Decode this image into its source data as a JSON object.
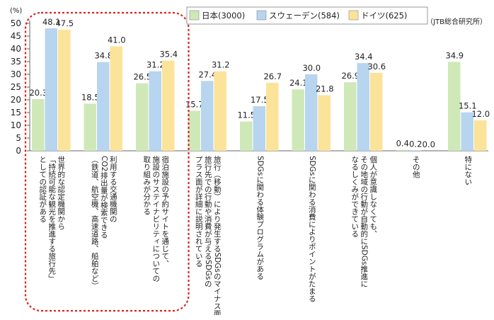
{
  "chart_data": {
    "type": "bar",
    "unit_label": "(%)",
    "source": "（JTB総合研究所）",
    "ylim": [
      0,
      50
    ],
    "yticks": [
      0,
      5,
      10,
      15,
      20,
      25,
      30,
      35,
      40,
      45,
      50
    ],
    "grid": false,
    "legend_position": "top",
    "categories": [
      "世界的な認定機関から\n「持続可能な観光を推進する旅行先」\nとしての認証がある",
      "利用する交通機関の\nCO2排出量が検索できる\n（鉄道、航空機、高速道路、船舶など）",
      "宿泊施設の予約サイトを通じて、\n施設のサステイナビリティについての\n取り組みが分かる",
      "旅行（移動）により発生するSDGsのマイナス面と\n旅行先での行動や消費が与えるSDGsの\nプラス面が詳細に説明されている",
      "SDGsに関わる体験プログラムがある",
      "SDGsに関わる消費によりポイントがたまる",
      "個人が意識しなくても、\nその地域の行動が自動的にSDGs推進に\nなるしくみができている",
      "その他",
      "特にない"
    ],
    "series": [
      {
        "name": "日本(3000)",
        "color": "#cfe8b8",
        "values": [
          20.3,
          18.5,
          26.5,
          15.7,
          11.5,
          24.1,
          26.9,
          0.4,
          34.9
        ]
      },
      {
        "name": "スウェーデン(584)",
        "color": "#b8d5f0",
        "values": [
          48.1,
          34.8,
          31.2,
          27.4,
          17.5,
          30.0,
          34.4,
          0.2,
          15.1
        ]
      },
      {
        "name": "ドイツ(625)",
        "color": "#fce39a",
        "values": [
          47.5,
          41.0,
          35.4,
          31.2,
          26.7,
          21.8,
          30.6,
          0.0,
          12.0
        ]
      }
    ],
    "highlight": {
      "categories": [
        0,
        1,
        2
      ],
      "style": "red dashed rounded box"
    }
  }
}
